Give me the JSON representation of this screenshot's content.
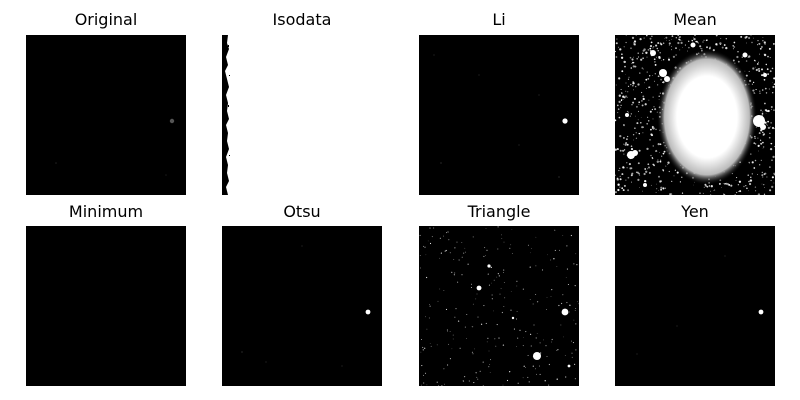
{
  "figure": {
    "panels": [
      {
        "id": "original",
        "title": "Original"
      },
      {
        "id": "isodata",
        "title": "Isodata"
      },
      {
        "id": "li",
        "title": "Li"
      },
      {
        "id": "mean",
        "title": "Mean"
      },
      {
        "id": "minimum",
        "title": "Minimum"
      },
      {
        "id": "otsu",
        "title": "Otsu"
      },
      {
        "id": "triangle",
        "title": "Triangle"
      },
      {
        "id": "yen",
        "title": "Yen"
      }
    ]
  },
  "colors": {
    "background": "#000000",
    "foreground": "#ffffff"
  }
}
